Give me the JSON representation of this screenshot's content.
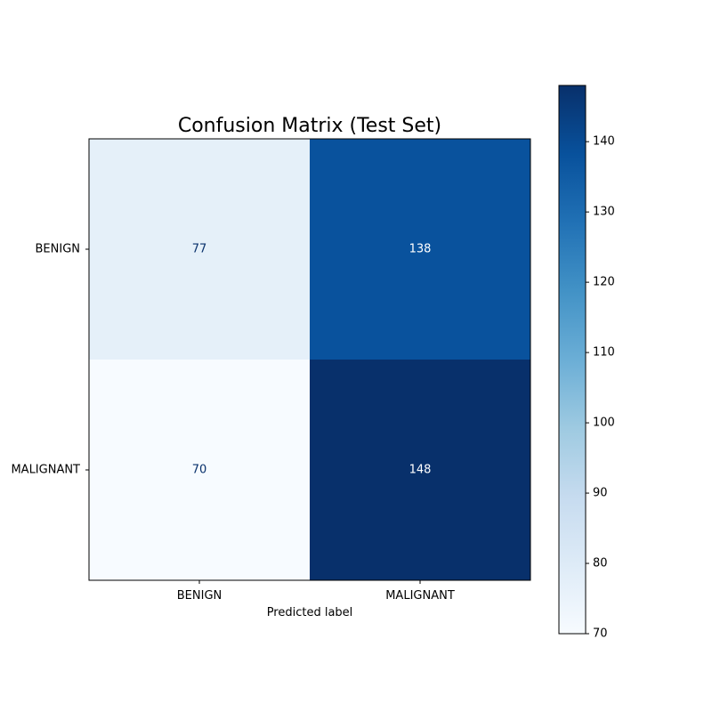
{
  "chart_data": {
    "type": "heatmap",
    "title": "Confusion Matrix (Test Set)",
    "xlabel": "Predicted label",
    "ylabel": "",
    "x_categories": [
      "BENIGN",
      "MALIGNANT"
    ],
    "y_categories": [
      "BENIGN",
      "MALIGNANT"
    ],
    "values": [
      [
        77,
        138
      ],
      [
        70,
        148
      ]
    ],
    "colormap": "Blues",
    "colorbar": {
      "min": 70,
      "max": 148,
      "ticks": [
        70,
        80,
        90,
        100,
        110,
        120,
        130,
        140
      ]
    },
    "grid": false
  }
}
